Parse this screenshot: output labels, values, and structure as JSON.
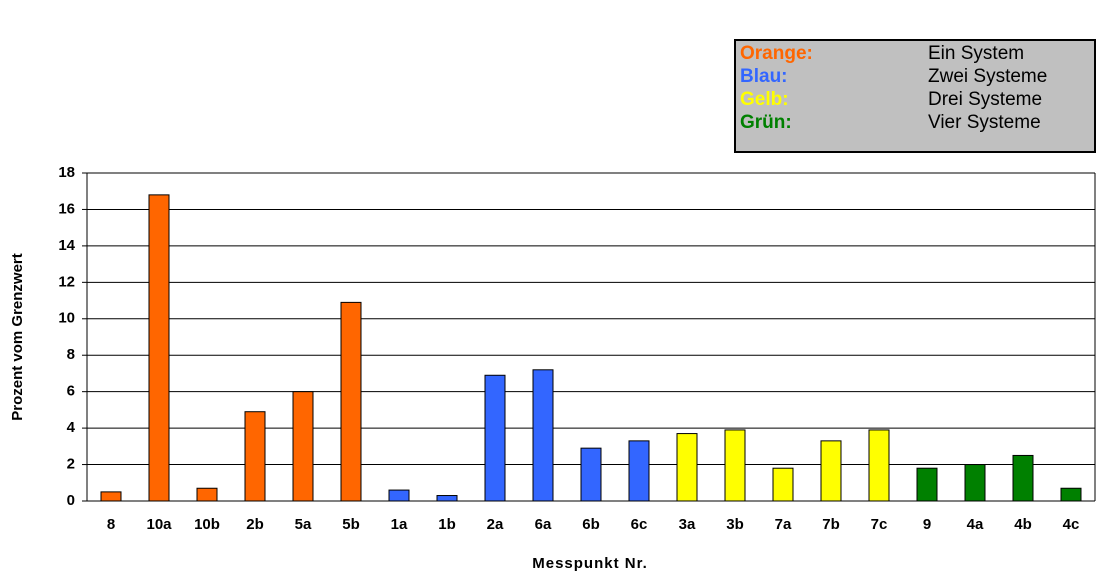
{
  "chart_data": {
    "type": "bar",
    "categories": [
      "8",
      "10a",
      "10b",
      "2b",
      "5a",
      "5b",
      "1a",
      "1b",
      "2a",
      "6a",
      "6b",
      "6c",
      "3a",
      "3b",
      "7a",
      "7b",
      "7c",
      "9",
      "4a",
      "4b",
      "4c"
    ],
    "values": [
      0.5,
      16.8,
      0.7,
      4.9,
      6.0,
      10.9,
      0.6,
      0.3,
      6.9,
      7.2,
      2.9,
      3.3,
      3.7,
      3.9,
      1.8,
      3.3,
      3.9,
      1.8,
      2.0,
      2.5,
      0.7
    ],
    "colors": [
      "#FF6600",
      "#FF6600",
      "#FF6600",
      "#FF6600",
      "#FF6600",
      "#FF6600",
      "#3366FF",
      "#3366FF",
      "#3366FF",
      "#3366FF",
      "#3366FF",
      "#3366FF",
      "#FFFF00",
      "#FFFF00",
      "#FFFF00",
      "#FFFF00",
      "#FFFF00",
      "#008000",
      "#008000",
      "#008000",
      "#008000"
    ],
    "ylim": [
      0,
      18
    ],
    "yticks": [
      0,
      2,
      4,
      6,
      8,
      10,
      12,
      14,
      16,
      18
    ],
    "grid": true,
    "ylabel": "Prozent vom Grenzwert",
    "xlabel": "Messpunkt Nr.",
    "legend": [
      {
        "label": "Orange:",
        "color": "#FF6600",
        "text": "Ein System"
      },
      {
        "label": "Blau:",
        "color": "#3366FF",
        "text": "Zwei Systeme"
      },
      {
        "label": "Gelb:",
        "color": "#FFFF00",
        "text": "Drei Systeme"
      },
      {
        "label": "Grün:",
        "color": "#008000",
        "text": "Vier Systeme"
      }
    ]
  }
}
